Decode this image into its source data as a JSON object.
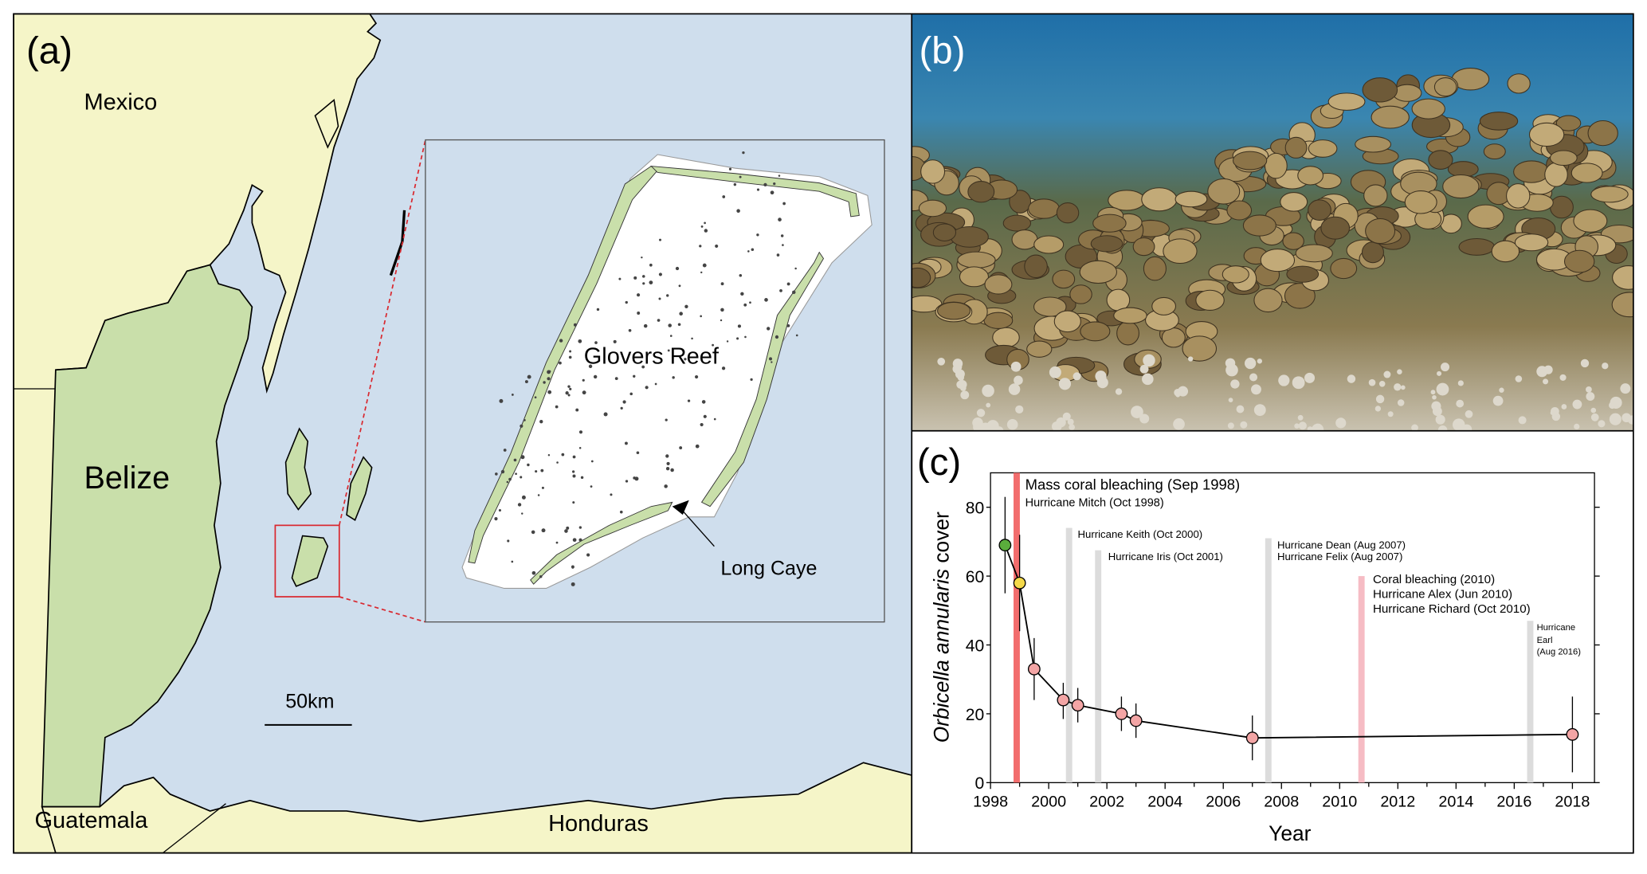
{
  "panel_a": {
    "label": "(a)",
    "countries": {
      "mexico": "Mexico",
      "belize": "Belize",
      "guatemala": "Guatemala",
      "honduras": "Honduras"
    },
    "inset": {
      "title": "Glovers Reef",
      "callout": "Long Caye"
    },
    "scale_bar": "50km",
    "colors": {
      "sea": "#cfdeed",
      "land": "#f5f5c8",
      "belize": "#c9dfaa",
      "reef": "#c9dfaa",
      "highlight": "#d9282f"
    }
  },
  "panel_b": {
    "label": "(b)"
  },
  "panel_c": {
    "label": "(c)"
  },
  "chart_data": {
    "type": "line",
    "title": "",
    "xlabel": "Year",
    "ylabel_italic": "Orbicella annularis",
    "ylabel_rest": " cover",
    "xlim": [
      1998,
      2018.75
    ],
    "ylim": [
      0,
      90
    ],
    "xticks": [
      1998,
      2000,
      2002,
      2004,
      2006,
      2008,
      2010,
      2012,
      2014,
      2016,
      2018
    ],
    "yticks": [
      0,
      20,
      40,
      60,
      80
    ],
    "grid": false,
    "points": [
      {
        "x": 1998.5,
        "y": 69,
        "err_low": 55,
        "err_high": 83,
        "color": "#5aad3c"
      },
      {
        "x": 1999.0,
        "y": 58,
        "err_low": 44,
        "err_high": 72,
        "color": "#f4d94a"
      },
      {
        "x": 1999.5,
        "y": 33,
        "err_low": 24,
        "err_high": 42,
        "color": "#f3a5a5"
      },
      {
        "x": 2000.5,
        "y": 24,
        "err_low": 18.5,
        "err_high": 29,
        "color": "#f3a5a5"
      },
      {
        "x": 2001.0,
        "y": 22.5,
        "err_low": 17.5,
        "err_high": 27.5,
        "color": "#f3a5a5"
      },
      {
        "x": 2002.5,
        "y": 20,
        "err_low": 15,
        "err_high": 25,
        "color": "#f3a5a5"
      },
      {
        "x": 2003.0,
        "y": 18,
        "err_low": 13,
        "err_high": 23,
        "color": "#f3a5a5"
      },
      {
        "x": 2007.0,
        "y": 13,
        "err_low": 6.5,
        "err_high": 19.5,
        "color": "#f3a5a5"
      },
      {
        "x": 2018.0,
        "y": 14,
        "err_low": 3,
        "err_high": 25,
        "color": "#f3a5a5"
      }
    ],
    "events": [
      {
        "x": 1998.9,
        "top": 90,
        "color": "#f26d6d",
        "labels": [
          "Mass coral bleaching (Sep 1998)",
          "Hurricane Mitch (Oct 1998)"
        ]
      },
      {
        "x": 2000.7,
        "top": 74,
        "color": "#dcdcdc",
        "labels": [
          "Hurricane Keith (Oct 2000)"
        ]
      },
      {
        "x": 2001.7,
        "top": 67.5,
        "color": "#dcdcdc",
        "labels": [
          "Hurricane Iris (Oct 2001)"
        ]
      },
      {
        "x": 2007.55,
        "top": 71,
        "color": "#dcdcdc",
        "labels": [
          "Hurricane Dean (Aug 2007)",
          "Hurricane Felix (Aug 2007)"
        ]
      },
      {
        "x": 2010.75,
        "top": 60,
        "color": "#f6bcc4",
        "labels": [
          "Coral bleaching (2010)",
          "Hurricane Alex (Jun 2010)",
          "Hurricane Richard (Oct 2010)"
        ]
      },
      {
        "x": 2016.55,
        "top": 47,
        "color": "#dcdcdc",
        "labels": [
          "Hurricane",
          "Earl",
          "(Aug 2016)"
        ]
      }
    ]
  }
}
